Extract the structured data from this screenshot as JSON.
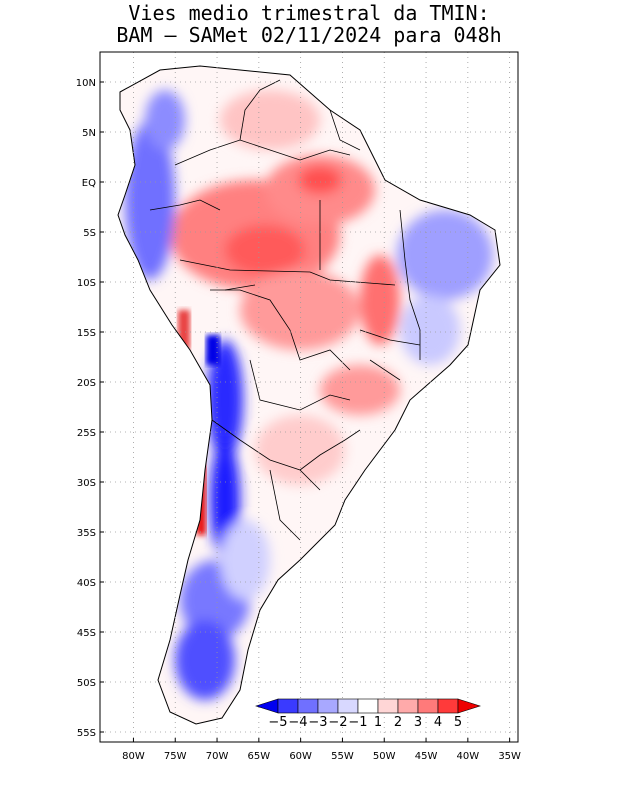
{
  "title": {
    "line1": "Vies medio trimestral da TMIN:",
    "line2": "BAM – SAMet 02/11/2024  para 048h"
  },
  "axes": {
    "lat_labels": [
      "10N",
      "5N",
      "EQ",
      "5S",
      "10S",
      "15S",
      "20S",
      "25S",
      "30S",
      "35S",
      "40S",
      "45S",
      "50S",
      "55S"
    ],
    "lat_values": [
      10,
      5,
      0,
      -5,
      -10,
      -15,
      -20,
      -25,
      -30,
      -35,
      -40,
      -45,
      -50,
      -55
    ],
    "lon_labels": [
      "80W",
      "75W",
      "70W",
      "65W",
      "60W",
      "55W",
      "50W",
      "45W",
      "40W",
      "35W"
    ],
    "lon_values": [
      -80,
      -75,
      -70,
      -65,
      -60,
      -55,
      -50,
      -45,
      -40,
      -35
    ],
    "lat_range": [
      -56,
      13
    ],
    "lon_range": [
      -84,
      -34
    ]
  },
  "colorbar": {
    "labels": [
      "-5",
      "-4",
      "-3",
      "-2",
      "-1",
      "1",
      "2",
      "3",
      "4",
      "5"
    ],
    "colors": [
      "#0000f0",
      "#3a3aff",
      "#7070ff",
      "#a8a8ff",
      "#d8d8ff",
      "#ffffff",
      "#ffd6d6",
      "#ffaaaa",
      "#ff7a7a",
      "#ff3a3a",
      "#ee0000"
    ]
  }
}
